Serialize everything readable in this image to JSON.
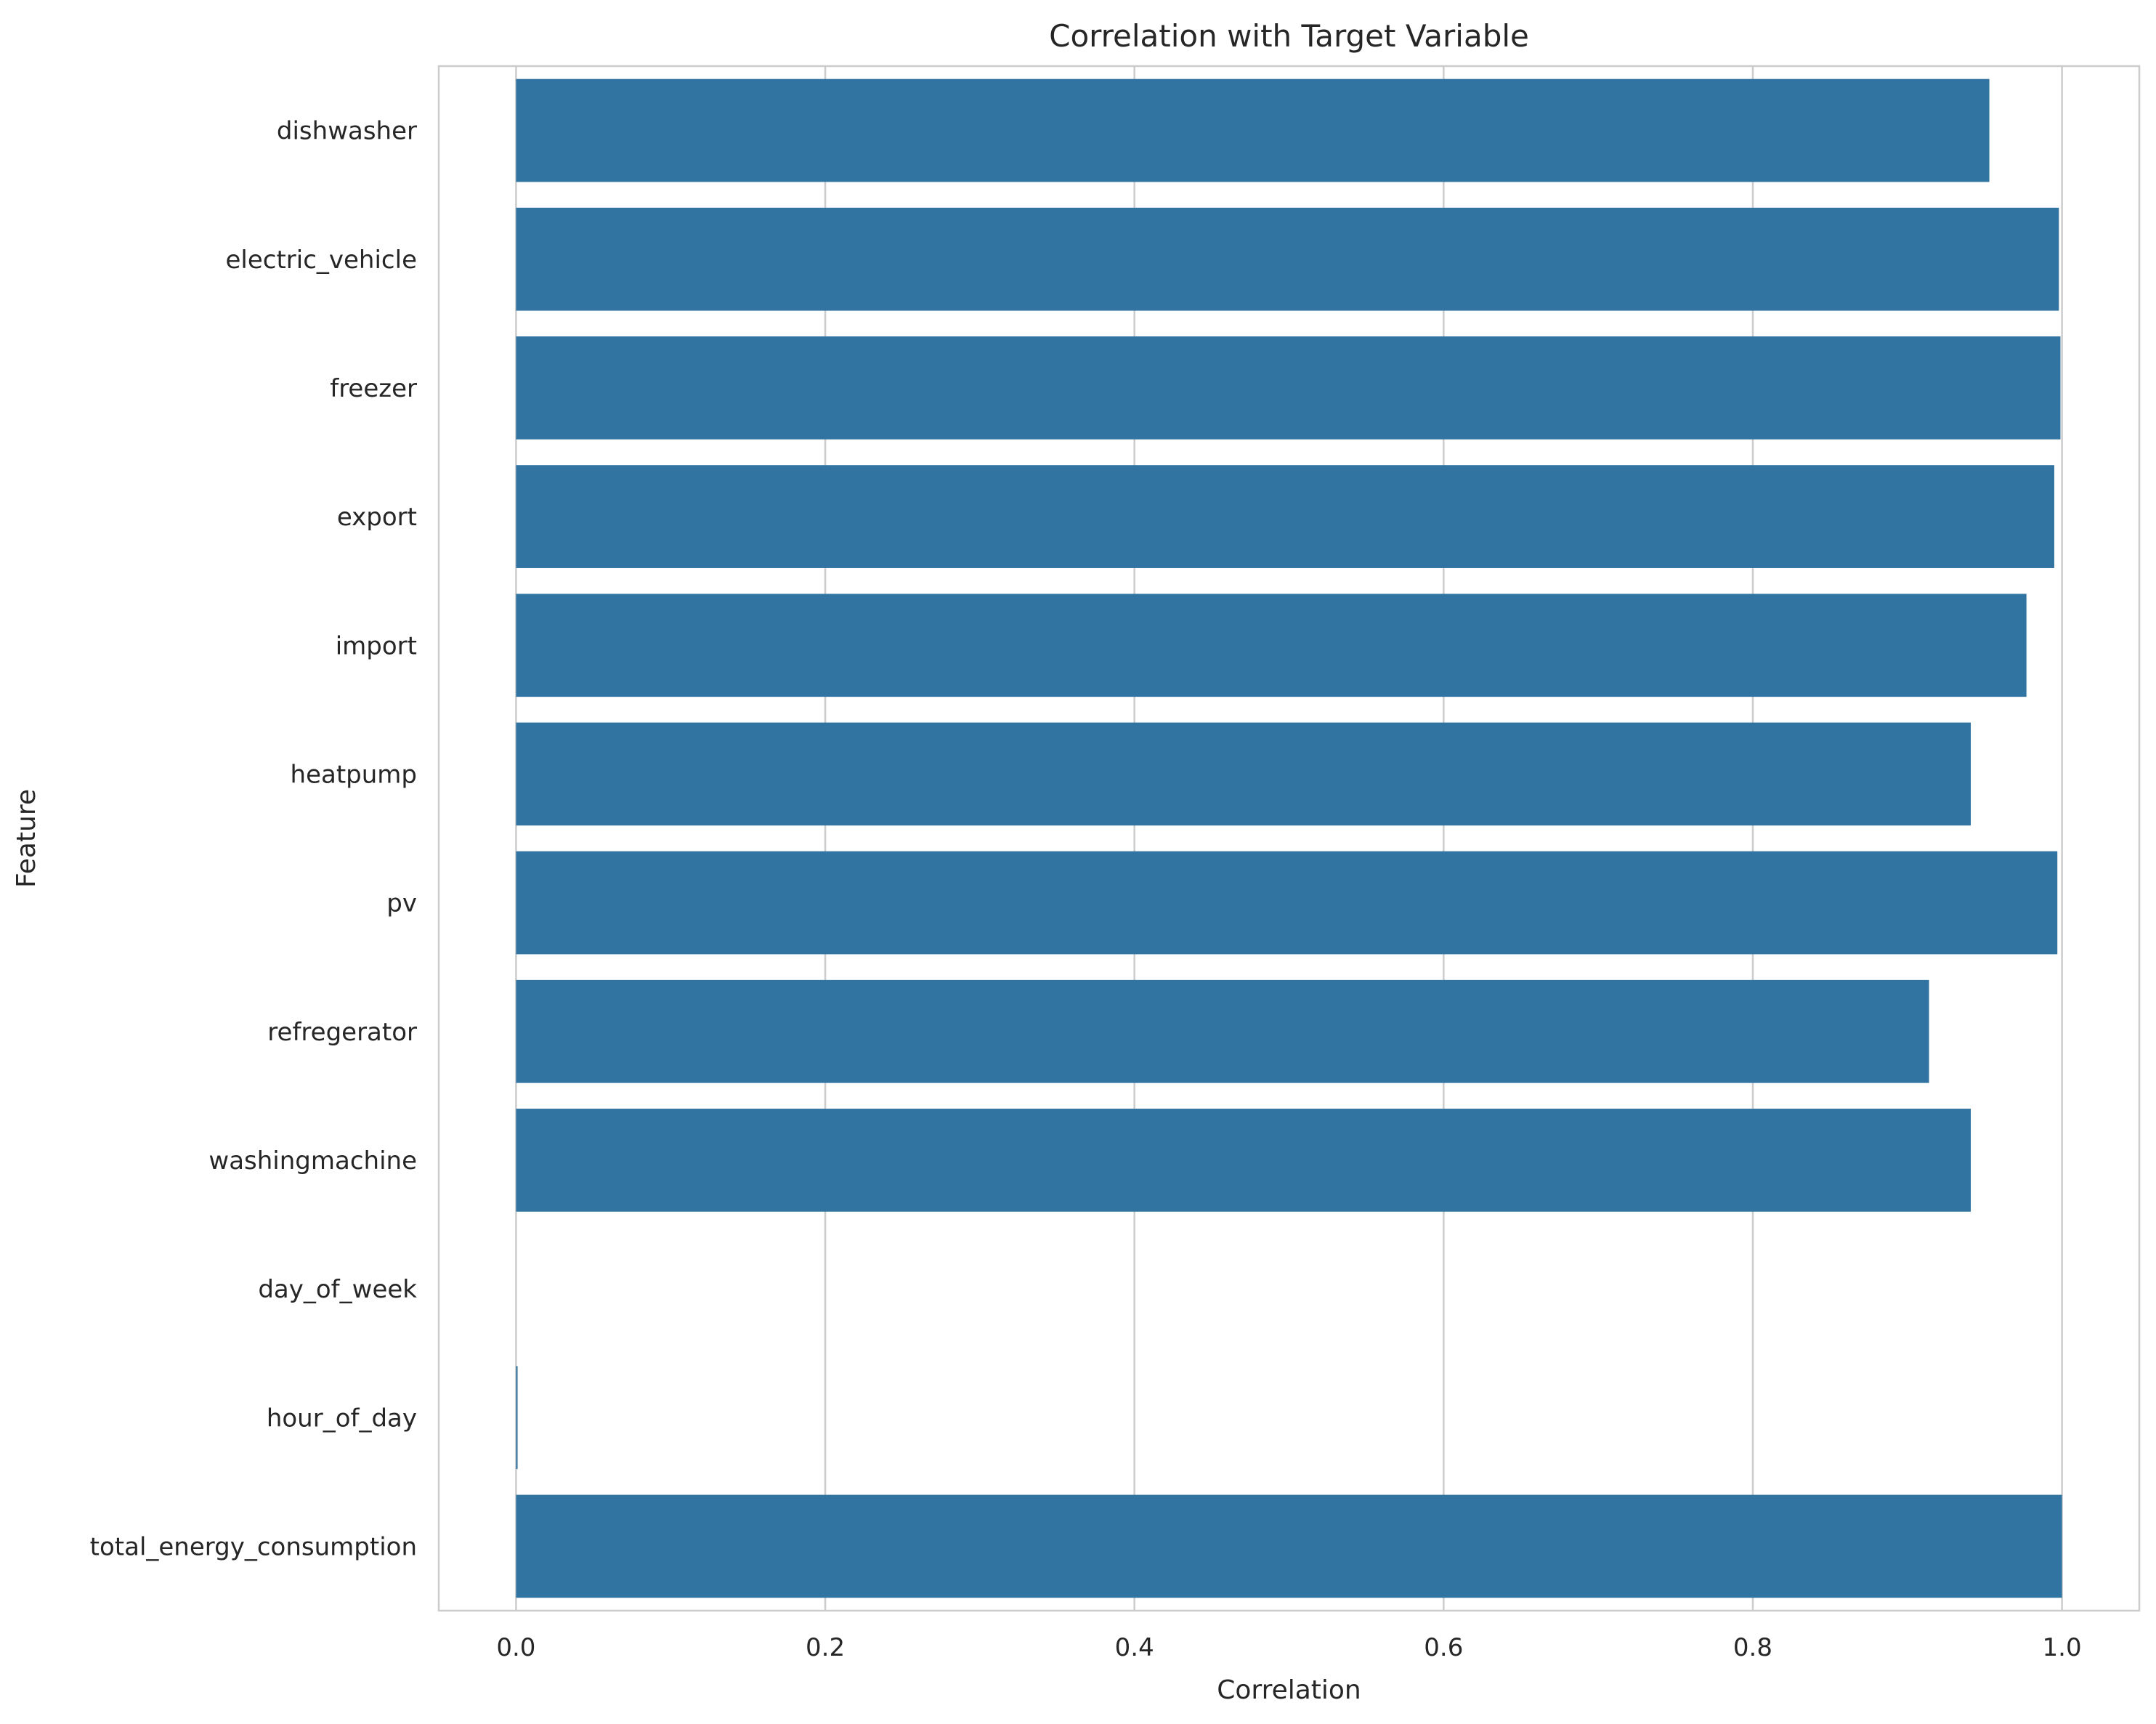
{
  "chart_data": {
    "type": "bar",
    "orientation": "horizontal",
    "title": "Correlation with Target Variable",
    "xlabel": "Correlation",
    "ylabel": "Feature",
    "xlim": [
      -0.05,
      1.05
    ],
    "xticks": [
      "0.0",
      "0.2",
      "0.4",
      "0.6",
      "0.8",
      "1.0"
    ],
    "grid": true,
    "bar_color": "#3274a1",
    "categories": [
      "dishwasher",
      "electric_vehicle",
      "freezer",
      "export",
      "import",
      "heatpump",
      "pv",
      "refregerator",
      "washingmachine",
      "day_of_week",
      "hour_of_day",
      "total_energy_consumption"
    ],
    "values": [
      0.953,
      0.998,
      0.999,
      0.995,
      0.977,
      0.941,
      0.997,
      0.914,
      0.941,
      0.0,
      0.001,
      1.0
    ]
  }
}
